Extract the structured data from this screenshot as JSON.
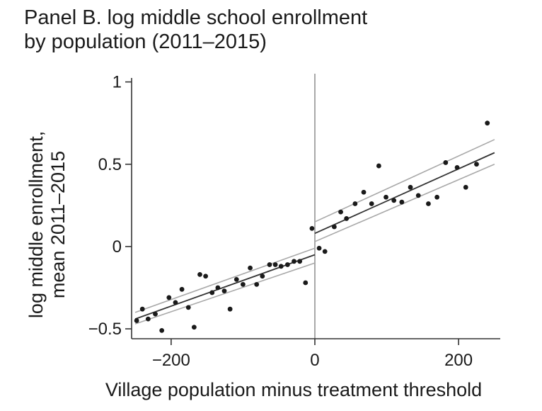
{
  "chart_data": {
    "type": "scatter",
    "title_line1": "Panel B. log middle school enrollment",
    "title_line2": "by population (2011–2015)",
    "ylabel_line1": "log middle enrollment,",
    "ylabel_line2": "mean 2011–2015",
    "xlabel": "Village population minus treatment threshold",
    "xlim": [
      -255,
      258
    ],
    "ylim": [
      -0.56,
      1.05
    ],
    "xticks": [
      {
        "value": -200,
        "label": "−200"
      },
      {
        "value": 0,
        "label": "0"
      },
      {
        "value": 200,
        "label": "200"
      }
    ],
    "yticks": [
      {
        "value": 1,
        "label": "1"
      },
      {
        "value": 0.5,
        "label": "0.5"
      },
      {
        "value": 0,
        "label": "0"
      },
      {
        "value": -0.5,
        "label": "−0.5"
      }
    ],
    "threshold_x": 0,
    "points": [
      {
        "x": -248,
        "y": -0.45
      },
      {
        "x": -240,
        "y": -0.38
      },
      {
        "x": -232,
        "y": -0.44
      },
      {
        "x": -222,
        "y": -0.41
      },
      {
        "x": -213,
        "y": -0.51
      },
      {
        "x": -203,
        "y": -0.31
      },
      {
        "x": -194,
        "y": -0.34
      },
      {
        "x": -185,
        "y": -0.26
      },
      {
        "x": -176,
        "y": -0.37
      },
      {
        "x": -168,
        "y": -0.49
      },
      {
        "x": -160,
        "y": -0.17
      },
      {
        "x": -152,
        "y": -0.18
      },
      {
        "x": -143,
        "y": -0.28
      },
      {
        "x": -135,
        "y": -0.25
      },
      {
        "x": -126,
        "y": -0.27
      },
      {
        "x": -118,
        "y": -0.38
      },
      {
        "x": -109,
        "y": -0.2
      },
      {
        "x": -100,
        "y": -0.23
      },
      {
        "x": -90,
        "y": -0.13
      },
      {
        "x": -81,
        "y": -0.23
      },
      {
        "x": -73,
        "y": -0.18
      },
      {
        "x": -63,
        "y": -0.11
      },
      {
        "x": -55,
        "y": -0.11
      },
      {
        "x": -47,
        "y": -0.12
      },
      {
        "x": -38,
        "y": -0.11
      },
      {
        "x": -29,
        "y": -0.09
      },
      {
        "x": -21,
        "y": -0.09
      },
      {
        "x": -13,
        "y": -0.22
      },
      {
        "x": -4,
        "y": 0.11
      },
      {
        "x": 6,
        "y": -0.01
      },
      {
        "x": 14,
        "y": -0.03
      },
      {
        "x": 27,
        "y": 0.12
      },
      {
        "x": 36,
        "y": 0.21
      },
      {
        "x": 44,
        "y": 0.17
      },
      {
        "x": 56,
        "y": 0.26
      },
      {
        "x": 68,
        "y": 0.33
      },
      {
        "x": 79,
        "y": 0.26
      },
      {
        "x": 89,
        "y": 0.49
      },
      {
        "x": 99,
        "y": 0.3
      },
      {
        "x": 110,
        "y": 0.28
      },
      {
        "x": 121,
        "y": 0.27
      },
      {
        "x": 133,
        "y": 0.36
      },
      {
        "x": 144,
        "y": 0.31
      },
      {
        "x": 158,
        "y": 0.26
      },
      {
        "x": 170,
        "y": 0.3
      },
      {
        "x": 182,
        "y": 0.51
      },
      {
        "x": 198,
        "y": 0.48
      },
      {
        "x": 210,
        "y": 0.36
      },
      {
        "x": 225,
        "y": 0.5
      },
      {
        "x": 240,
        "y": 0.75
      }
    ],
    "fit_left": {
      "x": [
        -250,
        0
      ],
      "y": [
        -0.44,
        -0.05
      ],
      "ci_lower": [
        -0.47,
        -0.1
      ],
      "ci_upper": [
        -0.4,
        -0.01
      ]
    },
    "fit_right": {
      "x": [
        0,
        250
      ],
      "y": [
        0.08,
        0.57
      ],
      "ci_lower": [
        0.03,
        0.5
      ],
      "ci_upper": [
        0.15,
        0.65
      ]
    },
    "colors": {
      "points": "#1a1a1a",
      "fit": "#333333",
      "ci": "#a8a8a8",
      "threshold": "#a8a8a8",
      "axis": "#333333"
    }
  }
}
